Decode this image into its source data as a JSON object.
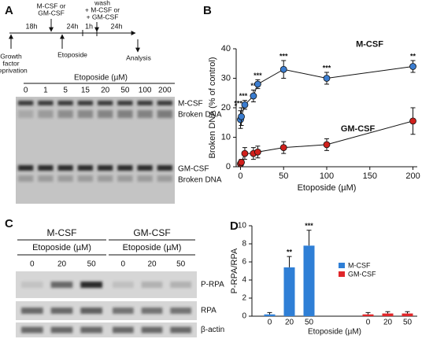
{
  "panel_labels": [
    "A",
    "B",
    "C",
    "D"
  ],
  "panel_a": {
    "timeline": {
      "intervals": [
        "18h",
        "24h",
        "1h",
        "24h"
      ],
      "events": [
        [
          "Growth",
          "factor",
          "deprivation"
        ],
        [
          "M-CSF or",
          "GM-CSF"
        ],
        [
          "Etoposide"
        ],
        [
          "wash",
          "+ M-CSF or",
          "+ GM-CSF"
        ],
        [
          "Analysis"
        ]
      ]
    },
    "gel": {
      "title": "Etoposide (µM)",
      "lanes": [
        "0",
        "1",
        "5",
        "15",
        "20",
        "50",
        "100",
        "200"
      ],
      "bands": [
        "M-CSF",
        "Broken DNA",
        "GM-CSF",
        "Broken DNA"
      ]
    }
  },
  "panel_c": {
    "groups": [
      {
        "name": "M-CSF",
        "subtitle": "Etoposide (µM)",
        "lanes": [
          "0",
          "20",
          "50"
        ]
      },
      {
        "name": "GM-CSF",
        "subtitle": "Etoposide (µM)",
        "lanes": [
          "0",
          "20",
          "50"
        ]
      }
    ],
    "rows": [
      "P-RPA",
      "RPA",
      "β-actin"
    ]
  },
  "chart_data": [
    {
      "type": "line",
      "xlabel": "Etoposide (µM)",
      "ylabel": "Broken DNA (% of control)",
      "x": [
        0,
        1,
        5,
        15,
        20,
        50,
        100,
        200
      ],
      "xlim": [
        -5,
        205
      ],
      "xticks": [
        0,
        50,
        100,
        150,
        200
      ],
      "ylim": [
        0,
        40
      ],
      "yticks": [
        0,
        10,
        20,
        30,
        40
      ],
      "series": [
        {
          "name": "M-CSF",
          "color": "#3b7dd0",
          "values": [
            16,
            17,
            21,
            24,
            28,
            33,
            30,
            34
          ],
          "errors": [
            3,
            3,
            1.5,
            2,
            1.5,
            3,
            2,
            2
          ],
          "significance": [
            "*",
            "***",
            "***",
            "**",
            "***",
            "***",
            "***",
            "**"
          ]
        },
        {
          "name": "GM-CSF",
          "color": "#d0201c",
          "values": [
            1,
            1.5,
            4.5,
            4.5,
            5,
            6.5,
            7.5,
            15.5
          ],
          "errors": [
            1,
            1,
            2,
            2,
            2,
            2,
            2,
            4.5
          ],
          "significance": [
            null,
            null,
            null,
            null,
            null,
            null,
            null,
            null
          ]
        }
      ]
    },
    {
      "type": "bar",
      "xlabel": "Etoposide (µM)",
      "ylabel": "P-RPA/RPA",
      "categories": [
        "0",
        "20",
        "50"
      ],
      "ylim": [
        0,
        10
      ],
      "yticks": [
        0,
        2,
        4,
        6,
        8,
        10
      ],
      "series": [
        {
          "name": "M-CSF",
          "color": "#2f7fd6",
          "values": [
            0.2,
            5.4,
            7.8
          ],
          "errors": [
            0.2,
            1.2,
            1.7
          ],
          "significance": [
            null,
            "**",
            "***"
          ]
        },
        {
          "name": "GM-CSF",
          "color": "#e0262a",
          "values": [
            0.2,
            0.3,
            0.3
          ],
          "errors": [
            0.2,
            0.2,
            0.2
          ],
          "significance": [
            null,
            null,
            null
          ]
        }
      ]
    }
  ]
}
